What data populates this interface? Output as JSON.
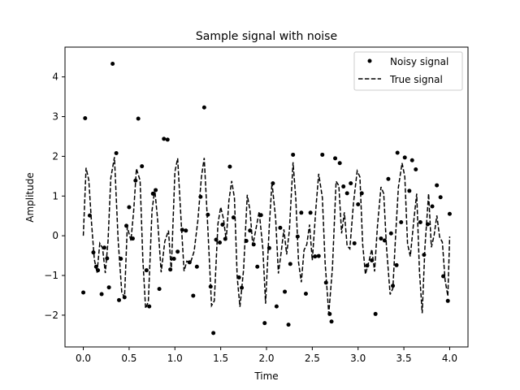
{
  "chart_data": {
    "type": "line",
    "title": "Sample signal with noise",
    "xlabel": "Time",
    "ylabel": "Amplitude",
    "xlim": [
      -0.2,
      4.2
    ],
    "ylim": [
      -2.8,
      4.75
    ],
    "xticks": [
      "0.0",
      "0.5",
      "1.0",
      "1.5",
      "2.0",
      "2.5",
      "3.0",
      "3.5",
      "4.0"
    ],
    "yticks": [
      "−2",
      "−1",
      "0",
      "1",
      "2",
      "3",
      "4"
    ],
    "grid": false,
    "legend": {
      "placement": "top-right"
    },
    "series": [
      {
        "name": "Noisy signal",
        "kind": "scatter",
        "color": "#000000",
        "points": [
          [
            0.0,
            -1.43
          ],
          [
            0.02,
            2.96
          ],
          [
            0.07,
            0.51
          ],
          [
            0.11,
            -0.42
          ],
          [
            0.14,
            -0.78
          ],
          [
            0.16,
            -0.87
          ],
          [
            0.2,
            -1.47
          ],
          [
            0.23,
            -0.3
          ],
          [
            0.26,
            -0.57
          ],
          [
            0.28,
            -1.3
          ],
          [
            0.32,
            4.33
          ],
          [
            0.36,
            2.08
          ],
          [
            0.39,
            -1.62
          ],
          [
            0.41,
            -0.58
          ],
          [
            0.45,
            -1.55
          ],
          [
            0.47,
            0.25
          ],
          [
            0.5,
            0.72
          ],
          [
            0.54,
            -0.07
          ],
          [
            0.57,
            1.39
          ],
          [
            0.6,
            2.95
          ],
          [
            0.64,
            1.75
          ],
          [
            0.69,
            -0.87
          ],
          [
            0.72,
            -1.78
          ],
          [
            0.76,
            1.06
          ],
          [
            0.79,
            1.15
          ],
          [
            0.83,
            -1.34
          ],
          [
            0.88,
            2.44
          ],
          [
            0.92,
            2.42
          ],
          [
            0.95,
            -0.85
          ],
          [
            0.99,
            -0.58
          ],
          [
            1.03,
            -0.4
          ],
          [
            1.08,
            0.15
          ],
          [
            1.12,
            0.13
          ],
          [
            1.16,
            -0.67
          ],
          [
            1.2,
            -1.51
          ],
          [
            1.24,
            -0.78
          ],
          [
            1.28,
            0.98
          ],
          [
            1.32,
            3.23
          ],
          [
            1.36,
            0.53
          ],
          [
            1.39,
            -1.28
          ],
          [
            1.42,
            -2.45
          ],
          [
            1.45,
            -0.1
          ],
          [
            1.49,
            -0.17
          ],
          [
            1.52,
            0.28
          ],
          [
            1.55,
            -0.08
          ],
          [
            1.6,
            1.74
          ],
          [
            1.64,
            0.46
          ],
          [
            1.7,
            -1.05
          ],
          [
            1.73,
            -1.31
          ],
          [
            1.78,
            -0.13
          ],
          [
            1.82,
            0.13
          ],
          [
            1.86,
            -0.22
          ],
          [
            1.9,
            -0.78
          ],
          [
            1.94,
            0.52
          ],
          [
            1.98,
            -2.2
          ],
          [
            2.03,
            -0.31
          ],
          [
            2.07,
            1.32
          ],
          [
            2.11,
            -1.78
          ],
          [
            2.15,
            0.2
          ],
          [
            2.2,
            -1.41
          ],
          [
            2.24,
            -2.24
          ],
          [
            2.26,
            -0.71
          ],
          [
            2.29,
            2.04
          ],
          [
            2.34,
            -0.02
          ],
          [
            2.38,
            0.58
          ],
          [
            2.43,
            -1.46
          ],
          [
            2.48,
            0.58
          ],
          [
            2.53,
            -0.52
          ],
          [
            2.57,
            -0.51
          ],
          [
            2.61,
            2.04
          ],
          [
            2.65,
            -1.18
          ],
          [
            2.69,
            -1.97
          ],
          [
            2.71,
            -2.16
          ],
          [
            2.75,
            1.95
          ],
          [
            2.8,
            1.83
          ],
          [
            2.84,
            1.24
          ],
          [
            2.88,
            1.07
          ],
          [
            2.92,
            1.32
          ],
          [
            2.96,
            -0.19
          ],
          [
            3.0,
            0.79
          ],
          [
            3.04,
            1.07
          ],
          [
            3.1,
            -0.75
          ],
          [
            3.15,
            -0.62
          ],
          [
            3.19,
            -1.97
          ],
          [
            3.25,
            -0.07
          ],
          [
            3.29,
            -0.12
          ],
          [
            3.33,
            1.43
          ],
          [
            3.38,
            -1.26
          ],
          [
            3.42,
            -0.74
          ],
          [
            3.47,
            0.34
          ],
          [
            3.51,
            1.97
          ],
          [
            3.56,
            1.13
          ],
          [
            3.59,
            1.9
          ],
          [
            3.63,
            1.67
          ],
          [
            3.68,
            0.34
          ],
          [
            3.72,
            -0.48
          ],
          [
            3.76,
            0.29
          ],
          [
            3.81,
            0.74
          ],
          [
            3.86,
            1.27
          ],
          [
            3.9,
            0.97
          ],
          [
            3.93,
            -1.02
          ],
          [
            3.98,
            -1.64
          ],
          [
            4.0,
            0.55
          ],
          [
            3.43,
            2.09
          ],
          [
            3.36,
            0.06
          ]
        ]
      },
      {
        "name": "True signal",
        "kind": "line",
        "dash": "dashed",
        "color": "#000000",
        "points": [
          [
            0.0,
            0.0
          ],
          [
            0.03,
            1.71
          ],
          [
            0.06,
            1.4
          ],
          [
            0.09,
            0.31
          ],
          [
            0.12,
            -0.59
          ],
          [
            0.15,
            -0.93
          ],
          [
            0.18,
            -0.19
          ],
          [
            0.21,
            -0.31
          ],
          [
            0.24,
            -0.94
          ],
          [
            0.27,
            -0.13
          ],
          [
            0.3,
            1.45
          ],
          [
            0.34,
            1.98
          ],
          [
            0.38,
            -0.1
          ],
          [
            0.42,
            -1.43
          ],
          [
            0.45,
            -1.55
          ],
          [
            0.48,
            0.22
          ],
          [
            0.52,
            -0.12
          ],
          [
            0.55,
            0.63
          ],
          [
            0.58,
            1.69
          ],
          [
            0.62,
            1.39
          ],
          [
            0.65,
            -0.6
          ],
          [
            0.68,
            -1.83
          ],
          [
            0.71,
            -1.66
          ],
          [
            0.75,
            0.63
          ],
          [
            0.78,
            1.17
          ],
          [
            0.81,
            0.44
          ],
          [
            0.85,
            -0.92
          ],
          [
            0.89,
            -0.14
          ],
          [
            0.93,
            0.13
          ],
          [
            0.96,
            -0.89
          ],
          [
            1.0,
            1.61
          ],
          [
            1.03,
            1.95
          ],
          [
            1.07,
            0.29
          ],
          [
            1.1,
            -0.89
          ],
          [
            1.13,
            -0.64
          ],
          [
            1.17,
            -0.68
          ],
          [
            1.21,
            -0.39
          ],
          [
            1.25,
            0.37
          ],
          [
            1.29,
            1.49
          ],
          [
            1.32,
            1.96
          ],
          [
            1.36,
            0.17
          ],
          [
            1.4,
            -1.76
          ],
          [
            1.43,
            -1.64
          ],
          [
            1.47,
            0.3
          ],
          [
            1.5,
            0.72
          ],
          [
            1.53,
            0.43
          ],
          [
            1.56,
            -0.11
          ],
          [
            1.59,
            0.89
          ],
          [
            1.62,
            1.38
          ],
          [
            1.65,
            0.95
          ],
          [
            1.68,
            -1.04
          ],
          [
            1.71,
            -1.79
          ],
          [
            1.75,
            -0.85
          ],
          [
            1.79,
            1.03
          ],
          [
            1.82,
            0.63
          ],
          [
            1.85,
            -0.24
          ],
          [
            1.88,
            0.11
          ],
          [
            1.92,
            0.61
          ],
          [
            1.96,
            -0.32
          ],
          [
            1.99,
            -1.71
          ],
          [
            2.03,
            0.23
          ],
          [
            2.06,
            1.34
          ],
          [
            2.1,
            0.43
          ],
          [
            2.13,
            -0.95
          ],
          [
            2.16,
            -0.42
          ],
          [
            2.19,
            0.16
          ],
          [
            2.22,
            -0.47
          ],
          [
            2.25,
            0.14
          ],
          [
            2.29,
            1.85
          ],
          [
            2.32,
            0.93
          ],
          [
            2.35,
            -0.67
          ],
          [
            2.38,
            -1.17
          ],
          [
            2.41,
            -0.36
          ],
          [
            2.44,
            -0.22
          ],
          [
            2.47,
            0.28
          ],
          [
            2.5,
            -0.62
          ],
          [
            2.54,
            0.71
          ],
          [
            2.57,
            1.56
          ],
          [
            2.61,
            0.96
          ],
          [
            2.64,
            -0.68
          ],
          [
            2.68,
            -1.96
          ],
          [
            2.72,
            -0.81
          ],
          [
            2.76,
            1.37
          ],
          [
            2.79,
            1.26
          ],
          [
            2.82,
            0.06
          ],
          [
            2.85,
            0.59
          ],
          [
            2.88,
            -0.25
          ],
          [
            2.91,
            -0.33
          ],
          [
            2.95,
            0.83
          ],
          [
            2.99,
            1.63
          ],
          [
            3.02,
            1.48
          ],
          [
            3.05,
            -0.21
          ],
          [
            3.08,
            -0.97
          ],
          [
            3.12,
            -0.63
          ],
          [
            3.15,
            -0.34
          ],
          [
            3.18,
            -0.9
          ],
          [
            3.21,
            0.2
          ],
          [
            3.25,
            1.23
          ],
          [
            3.28,
            1.06
          ],
          [
            3.31,
            -0.28
          ],
          [
            3.35,
            -1.48
          ],
          [
            3.38,
            -1.32
          ],
          [
            3.41,
            0.02
          ],
          [
            3.44,
            1.22
          ],
          [
            3.48,
            1.83
          ],
          [
            3.51,
            1.49
          ],
          [
            3.54,
            -0.2
          ],
          [
            3.57,
            -0.52
          ],
          [
            3.61,
            0.42
          ],
          [
            3.64,
            1.06
          ],
          [
            3.67,
            -0.89
          ],
          [
            3.7,
            -1.95
          ],
          [
            3.73,
            -0.28
          ],
          [
            3.77,
            1.06
          ],
          [
            3.8,
            -0.29
          ],
          [
            3.83,
            0.01
          ],
          [
            3.86,
            0.51
          ],
          [
            3.89,
            -0.03
          ],
          [
            3.92,
            -0.16
          ],
          [
            3.95,
            -1.12
          ],
          [
            3.98,
            -1.52
          ],
          [
            4.0,
            -0.02
          ]
        ]
      }
    ]
  }
}
